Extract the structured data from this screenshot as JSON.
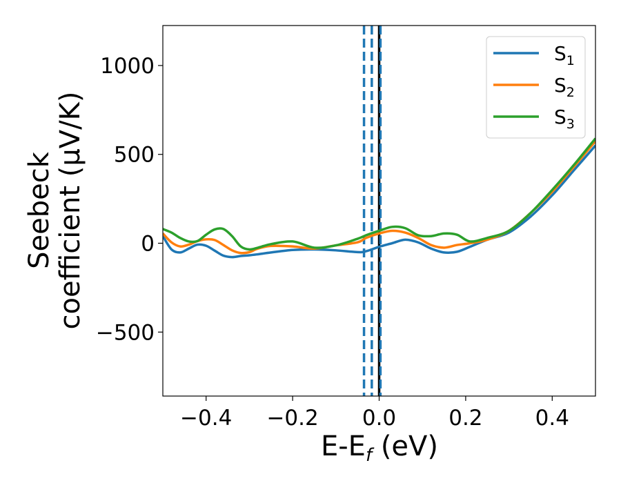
{
  "chart_data": {
    "type": "line",
    "xlabel": "E-E",
    "xlabel_sub": "f",
    "xlabel_unit": " (eV)",
    "ylabel_line1": "Seebeck",
    "ylabel_line2": "coefficient  (μV/K)",
    "xlim": [
      -0.5,
      0.5
    ],
    "ylim": [
      -860,
      1225
    ],
    "xticks": [
      -0.4,
      -0.2,
      0.0,
      0.2,
      0.4
    ],
    "xtick_labels": [
      "−0.4",
      "−0.2",
      "0.0",
      "0.2",
      "0.4"
    ],
    "yticks": [
      -500,
      0,
      500,
      1000
    ],
    "ytick_labels": [
      "−500",
      "0",
      "500",
      "1000"
    ],
    "grid": false,
    "legend_position": "top-right",
    "series": [
      {
        "name": "S",
        "sub": "1",
        "color": "#1f77b4",
        "x": [
          -0.5,
          -0.48,
          -0.46,
          -0.44,
          -0.42,
          -0.4,
          -0.38,
          -0.36,
          -0.34,
          -0.32,
          -0.3,
          -0.28,
          -0.25,
          -0.2,
          -0.15,
          -0.1,
          -0.05,
          -0.03,
          0.0,
          0.03,
          0.06,
          0.09,
          0.12,
          0.15,
          0.18,
          0.21,
          0.25,
          0.3,
          0.35,
          0.4,
          0.45,
          0.5
        ],
        "y": [
          40,
          -35,
          -52,
          -30,
          -8,
          -14,
          -42,
          -70,
          -78,
          -72,
          -68,
          -62,
          -52,
          -38,
          -35,
          -40,
          -50,
          -45,
          -20,
          0,
          20,
          5,
          -30,
          -52,
          -48,
          -20,
          20,
          60,
          150,
          270,
          410,
          550
        ]
      },
      {
        "name": "S",
        "sub": "2",
        "color": "#ff7f0e",
        "x": [
          -0.5,
          -0.48,
          -0.46,
          -0.44,
          -0.42,
          -0.4,
          -0.38,
          -0.36,
          -0.34,
          -0.32,
          -0.3,
          -0.28,
          -0.25,
          -0.2,
          -0.15,
          -0.1,
          -0.05,
          -0.03,
          0.0,
          0.03,
          0.06,
          0.09,
          0.12,
          0.15,
          0.18,
          0.21,
          0.25,
          0.3,
          0.35,
          0.4,
          0.45,
          0.5
        ],
        "y": [
          55,
          5,
          -18,
          -8,
          12,
          22,
          18,
          -10,
          -40,
          -55,
          -50,
          -30,
          -15,
          -18,
          -30,
          -12,
          5,
          30,
          55,
          70,
          60,
          30,
          -10,
          -25,
          -10,
          0,
          20,
          70,
          170,
          290,
          430,
          575
        ]
      },
      {
        "name": "S",
        "sub": "3",
        "color": "#2ca02c",
        "x": [
          -0.5,
          -0.48,
          -0.46,
          -0.44,
          -0.42,
          -0.4,
          -0.38,
          -0.36,
          -0.34,
          -0.32,
          -0.3,
          -0.28,
          -0.25,
          -0.2,
          -0.15,
          -0.1,
          -0.05,
          -0.03,
          0.0,
          0.03,
          0.06,
          0.09,
          0.12,
          0.15,
          0.18,
          0.21,
          0.25,
          0.3,
          0.35,
          0.4,
          0.45,
          0.5
        ],
        "y": [
          80,
          60,
          30,
          10,
          12,
          48,
          78,
          80,
          40,
          -18,
          -35,
          -25,
          -5,
          10,
          -25,
          -12,
          25,
          45,
          70,
          92,
          85,
          45,
          40,
          55,
          48,
          10,
          30,
          70,
          170,
          300,
          440,
          590
        ]
      }
    ],
    "vlines": [
      {
        "x": -0.035,
        "color": "#1f77b4",
        "style": "dashed"
      },
      {
        "x": -0.017,
        "color": "#1f77b4",
        "style": "dashed"
      },
      {
        "x": 0.0,
        "color": "#000000",
        "style": "solid"
      },
      {
        "x": 0.003,
        "color": "#1f77b4",
        "style": "dashed"
      }
    ]
  }
}
